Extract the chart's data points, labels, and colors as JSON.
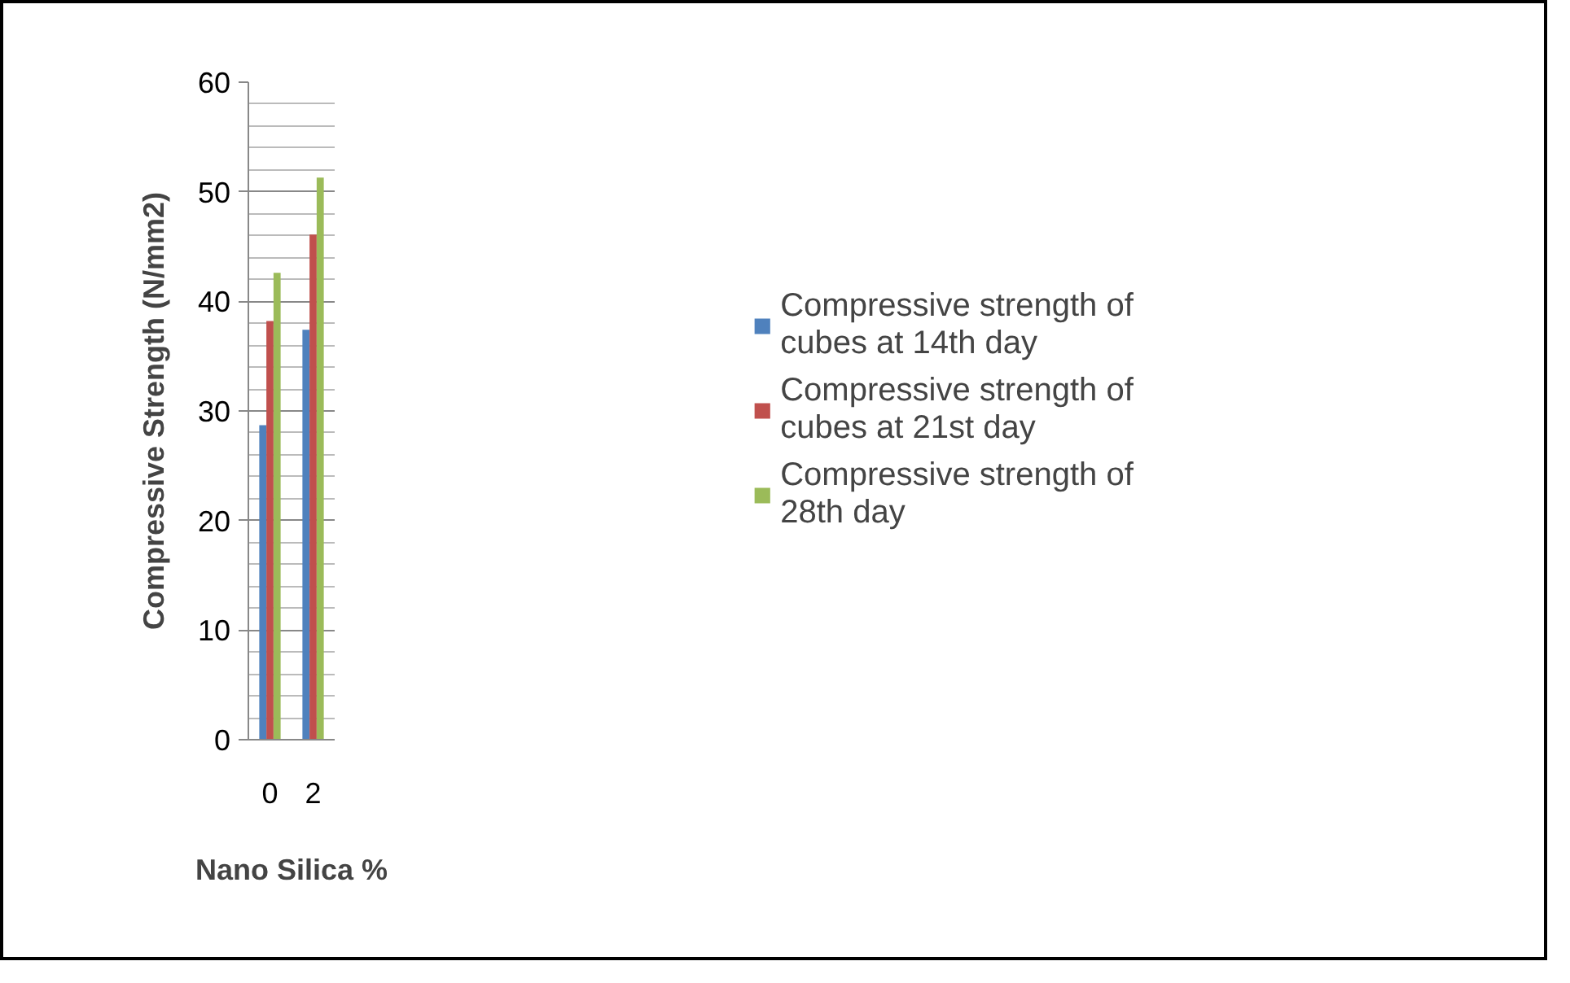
{
  "chart_data": {
    "type": "bar",
    "categories": [
      "0",
      "2"
    ],
    "xlabel": "Nano Silica %",
    "ylabel": "Compressive Strength (N/mm2)",
    "series": [
      {
        "name": "Compressive strength of cubes at 14th day",
        "color": "#4f81bd",
        "values": [
          28.7,
          37.4
        ]
      },
      {
        "name": "Compressive strength of cubes at 21st day",
        "color": "#c0504d",
        "values": [
          38.2,
          46.1
        ]
      },
      {
        "name": "Compressive strength of 28th day",
        "color": "#9bbb59",
        "values": [
          42.6,
          51.3
        ]
      }
    ],
    "ylim": [
      0,
      60
    ],
    "yticks": [
      0,
      10,
      20,
      30,
      40,
      50,
      60
    ],
    "grid": "y",
    "legend": "right"
  }
}
